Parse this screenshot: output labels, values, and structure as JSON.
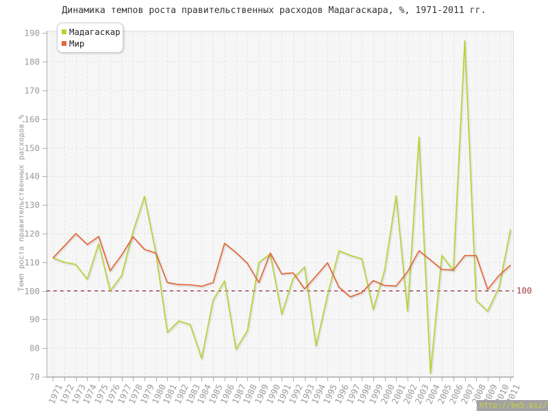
{
  "title": "Динамика темпов роста правительственных расходов Мадагаскара, %, 1971-2011 гг.",
  "watermark": "http://be5.biz/",
  "ylabel": "Темп роста правительственных расходов,%",
  "chart_data": {
    "type": "line",
    "x": [
      1971,
      1972,
      1973,
      1974,
      1975,
      1976,
      1977,
      1978,
      1979,
      1980,
      1981,
      1982,
      1983,
      1984,
      1985,
      1986,
      1987,
      1988,
      1989,
      1990,
      1991,
      1992,
      1993,
      1994,
      1995,
      1996,
      1997,
      1998,
      1999,
      2000,
      2001,
      2002,
      2003,
      2004,
      2005,
      2006,
      2007,
      2008,
      2009,
      2010,
      2011
    ],
    "series": [
      {
        "name": "Мадагаскар",
        "color": "#b5d336",
        "values": [
          111.5,
          110.0,
          109.2,
          104.1,
          116.5,
          100.0,
          105.3,
          120.6,
          133.0,
          113.3,
          85.5,
          89.5,
          88.2,
          76.4,
          96.8,
          103.5,
          79.6,
          86.1,
          109.9,
          112.9,
          91.9,
          104.4,
          108.3,
          80.8,
          98.5,
          114.0,
          112.4,
          111.2,
          93.5,
          107.3,
          133.2,
          93.0,
          153.7,
          71.2,
          112.4,
          107.1,
          187.3,
          96.7,
          92.9,
          101.3,
          121.5
        ]
      },
      {
        "name": "Мир",
        "color": "#e56636",
        "values": [
          111.5,
          115.7,
          120.0,
          116.2,
          119.0,
          107.0,
          112.5,
          118.9,
          114.5,
          113.2,
          102.9,
          102.2,
          102.1,
          101.6,
          102.9,
          116.6,
          113.4,
          109.6,
          102.9,
          113.2,
          105.9,
          106.3,
          100.7,
          105.2,
          109.8,
          101.3,
          97.9,
          99.4,
          103.6,
          101.9,
          101.7,
          106.7,
          114.0,
          110.8,
          107.5,
          107.3,
          112.3,
          112.3,
          100.5,
          105.4,
          109.0
        ]
      }
    ],
    "ylabel": "Темп роста правительственных расходов,%",
    "ylim": [
      70,
      190
    ],
    "ytick_step": 10,
    "grid": true,
    "legend_position": "top-left",
    "reference_line": {
      "value": 100,
      "label": "100",
      "color": "#8c2a3e",
      "label_color": "#a3393f"
    }
  },
  "style": {
    "plot_bg": "#f6f6f6",
    "grid_color": "#e3e3e3",
    "axis_color": "#aaaaaa",
    "tick_label_color": "#999999",
    "border_color": "#dddddd"
  }
}
